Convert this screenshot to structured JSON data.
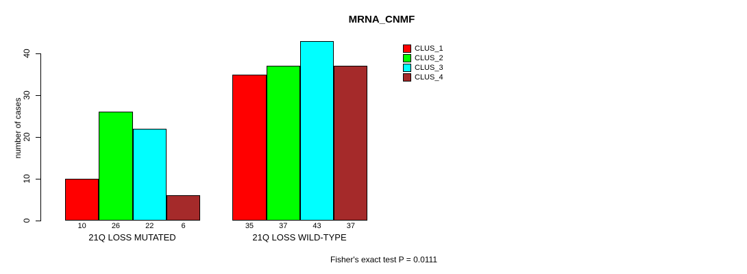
{
  "title": "MRNA_CNMF",
  "footer": "Fisher's exact test P = 0.0111",
  "colors": {
    "background": "#ffffff",
    "bar_border": "#000000",
    "text": "#000000"
  },
  "chart_data": {
    "type": "bar",
    "title": "MRNA_CNMF",
    "xlabel": "",
    "ylabel": "number of cases",
    "categories": [
      "21Q LOSS MUTATED",
      "21Q LOSS WILD-TYPE"
    ],
    "series": [
      {
        "name": "CLUS_1",
        "color": "#ff0000",
        "values": [
          10,
          35
        ]
      },
      {
        "name": "CLUS_2",
        "color": "#00ff00",
        "values": [
          26,
          37
        ]
      },
      {
        "name": "CLUS_3",
        "color": "#00ffff",
        "values": [
          22,
          43
        ]
      },
      {
        "name": "CLUS_4",
        "color": "#a52a2a",
        "values": [
          6,
          37
        ]
      }
    ],
    "bar_value_labels": {
      "21Q LOSS MUTATED": [
        10,
        26,
        22,
        6
      ],
      "21Q LOSS WILD-TYPE": [
        35,
        37,
        43,
        37
      ]
    },
    "yticks": [
      0,
      10,
      20,
      30,
      40
    ],
    "ylim": [
      0,
      43
    ],
    "grid": false,
    "legend_position": "top-right",
    "legend_entries": [
      "CLUS_1",
      "CLUS_2",
      "CLUS_3",
      "CLUS_4"
    ],
    "annotation": "Fisher's exact test P = 0.0111"
  }
}
